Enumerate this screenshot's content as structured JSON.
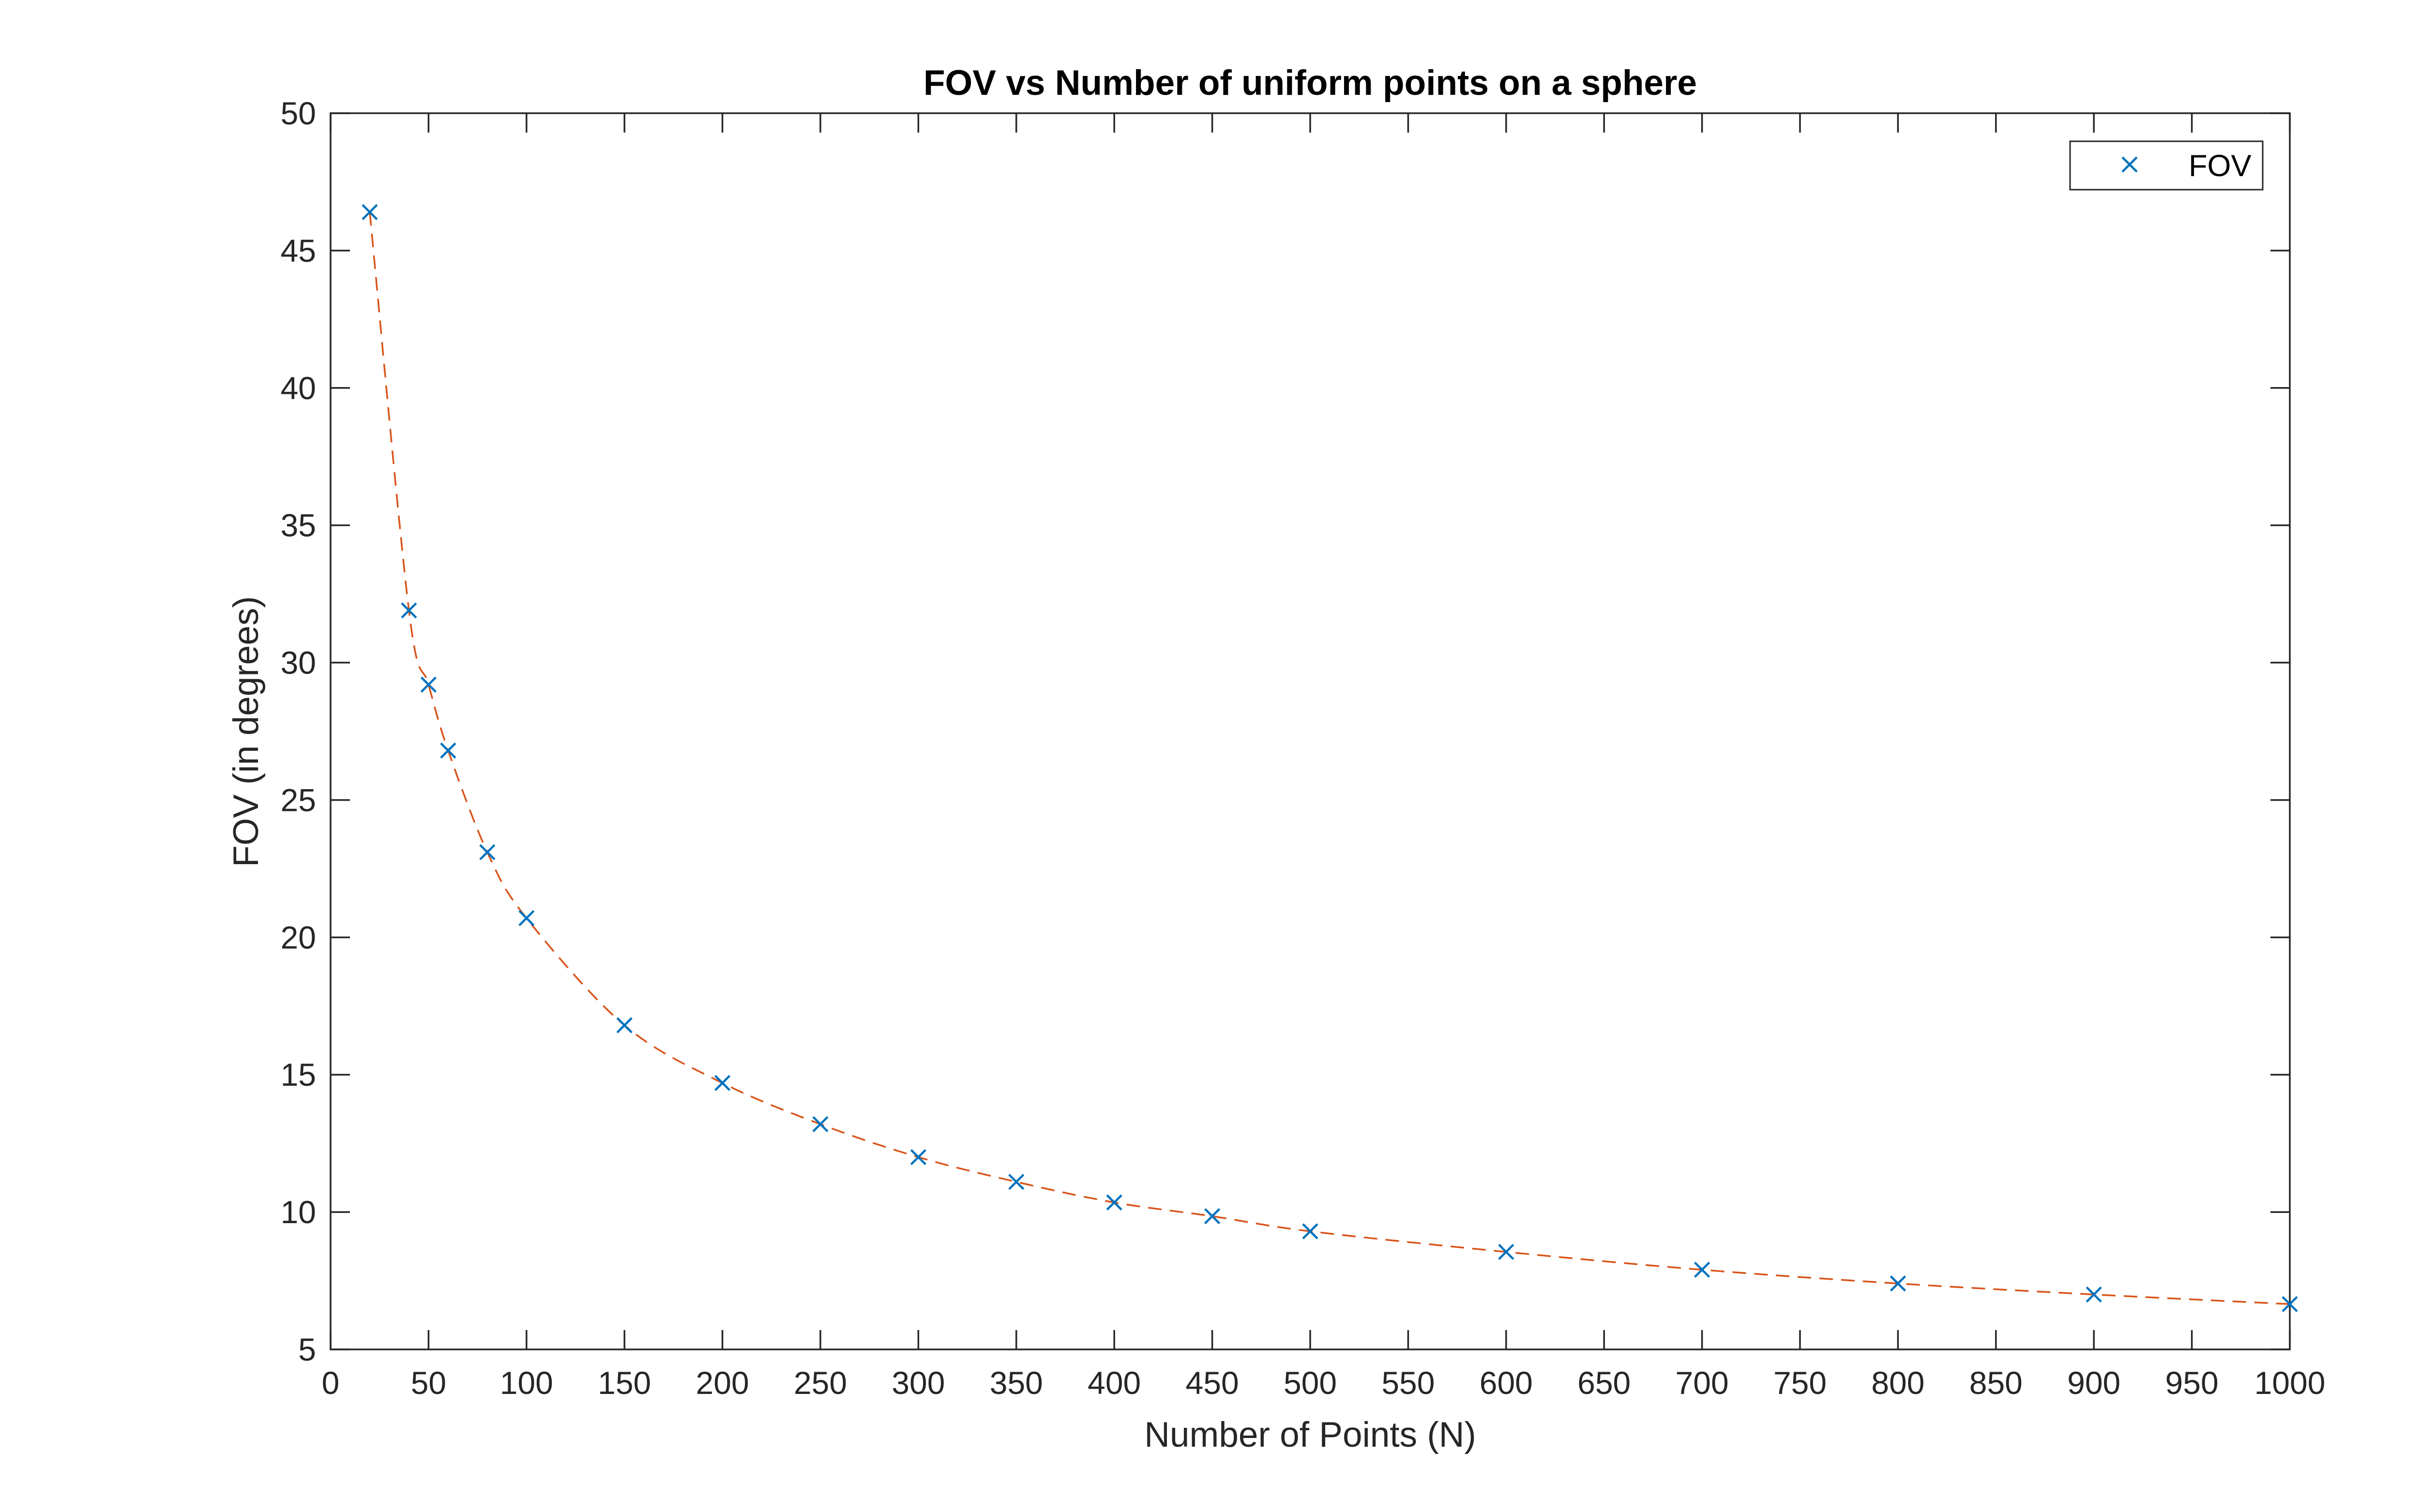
{
  "chart_data": {
    "type": "line",
    "title": "FOV vs Number of uniform points on a sphere",
    "xlabel": "Number of Points (N)",
    "ylabel": "FOV (in degrees)",
    "xlim": [
      0,
      1000
    ],
    "ylim": [
      5,
      50
    ],
    "xticks": [
      0,
      50,
      100,
      150,
      200,
      250,
      300,
      350,
      400,
      450,
      500,
      550,
      600,
      650,
      700,
      750,
      800,
      850,
      900,
      950,
      1000
    ],
    "yticks": [
      5,
      10,
      15,
      20,
      25,
      30,
      35,
      40,
      45,
      50
    ],
    "grid": false,
    "legend_position": "top-right",
    "series": [
      {
        "name": "FOV",
        "marker": "x",
        "color": "#0072BD",
        "x": [
          20,
          40,
          50,
          60,
          80,
          100,
          150,
          200,
          250,
          300,
          350,
          400,
          450,
          500,
          600,
          700,
          800,
          900,
          1000
        ],
        "y": [
          46.4,
          31.9,
          29.2,
          26.8,
          23.1,
          20.7,
          16.8,
          14.7,
          13.2,
          12.0,
          11.1,
          10.35,
          9.85,
          9.3,
          8.55,
          7.9,
          7.4,
          7.0,
          6.65
        ]
      }
    ],
    "fit_line": {
      "style": "dashed",
      "color": "#D95319",
      "x_range": [
        20,
        1000
      ]
    }
  }
}
